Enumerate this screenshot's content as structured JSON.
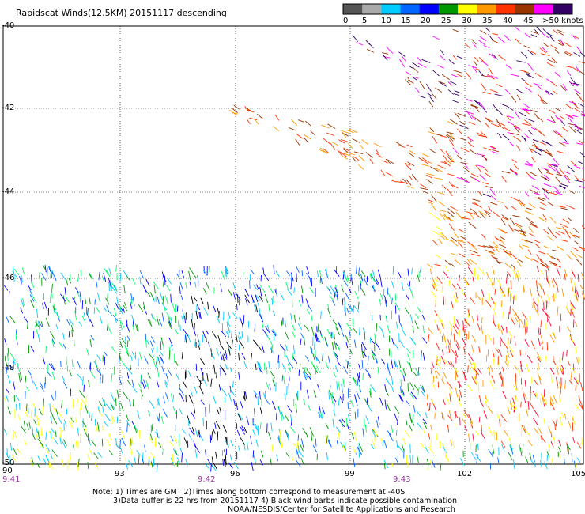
{
  "title": "Rapidscat Winds(12.5KM) 20151117 descending",
  "legend": {
    "labels": [
      "0",
      "5",
      "10",
      "15",
      "20",
      "25",
      "30",
      "35",
      "40",
      "45",
      ">50 knots"
    ],
    "colors": [
      "#555555",
      "#aaaaaa",
      "#00ccff",
      "#0066ff",
      "#0000ff",
      "#009900",
      "#ffff00",
      "#ff9900",
      "#ff3300",
      "#993300",
      "#ff00ff",
      "#330066"
    ]
  },
  "axes": {
    "lat_labels": [
      "-40",
      "-42",
      "-44",
      "-46",
      "-48",
      "-50"
    ],
    "lon_labels": [
      "90",
      "93",
      "96",
      "99",
      "102",
      "105"
    ],
    "time_labels": [
      "9:41",
      "9:42",
      "9:43"
    ]
  },
  "notes": {
    "line1": "Note: 1) Times are GMT 2)Times along bottom correspond to measurement at -40S",
    "line2": "3)Data buffer is 22 hrs from 20151117 4) Black wind barbs indicate possible contamination",
    "line3": "NOAA/NESDIS/Center for Satellite Applications and Research"
  }
}
